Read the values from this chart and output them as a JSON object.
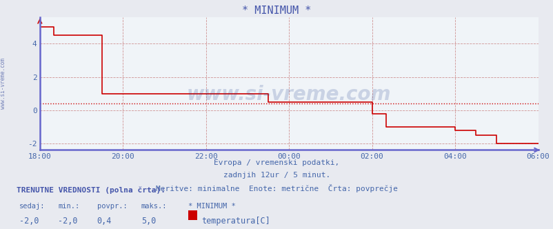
{
  "title": "* MINIMUM *",
  "title_color": "#4455aa",
  "bg_color": "#e8eaf0",
  "plot_bg_color": "#f0f4f8",
  "grid_color_major": "#cc8888",
  "grid_color_minor": "#ccccdd",
  "xlabel_lines": [
    "Evropa / vremenski podatki,",
    "zadnjih 12ur / 5 minut.",
    "Meritve: minimalne  Enote: metrične  Črta: povprečje"
  ],
  "xlabel_color": "#4466aa",
  "ylim": [
    -2.4,
    5.6
  ],
  "yticks": [
    -2,
    0,
    2,
    4
  ],
  "xlim": [
    0,
    144
  ],
  "xtick_labels": [
    "18:00",
    "20:00",
    "22:00",
    "00:00",
    "02:00",
    "04:00",
    "06:00"
  ],
  "xtick_positions": [
    0,
    24,
    48,
    72,
    96,
    120,
    144
  ],
  "avg_line_y": 0.4,
  "avg_line_color": "#cc0000",
  "avg_line_style": ":",
  "line_color": "#cc0000",
  "line_width": 1.2,
  "watermark_text": "www.si-vreme.com",
  "watermark_color": "#1a3a8a",
  "watermark_alpha": 0.18,
  "left_label": "www.si-vreme.com",
  "left_label_color": "#5566aa",
  "axis_border_color": "#6666cc",
  "bottom_labels": {
    "header": "TRENUTNE VREDNOSTI (polna črta):",
    "col_headers": [
      "sedaj:",
      "min.:",
      "povpr.:",
      "maks.:",
      "* MINIMUM *"
    ],
    "vals": [
      "-2,0",
      "-2,0",
      "0,4",
      "5,0"
    ],
    "legend_label": "temperatura[C]",
    "legend_color": "#cc0000"
  },
  "temperature_data": {
    "x": [
      0,
      4,
      4,
      18,
      18,
      24,
      24,
      48,
      48,
      66,
      66,
      72,
      72,
      96,
      96,
      100,
      100,
      120,
      120,
      126,
      126,
      132,
      132,
      138,
      138,
      144
    ],
    "y": [
      5.0,
      5.0,
      4.5,
      4.5,
      1.0,
      1.0,
      1.0,
      1.0,
      1.0,
      1.0,
      0.5,
      0.5,
      0.5,
      0.5,
      -0.2,
      -0.2,
      -1.0,
      -1.0,
      -1.2,
      -1.2,
      -1.5,
      -1.5,
      -2.0,
      -2.0,
      -2.0,
      -2.0
    ]
  }
}
